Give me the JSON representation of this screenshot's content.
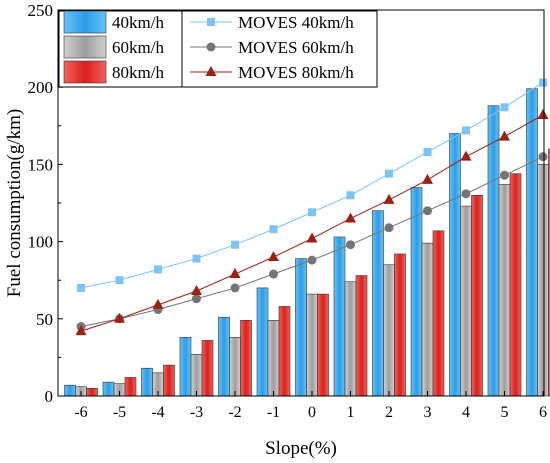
{
  "chart_data": {
    "type": "bar",
    "xlabel": "Slope(%)",
    "ylabel": "Fuel consumption(g/km)",
    "ylim": [
      0,
      250
    ],
    "yticks": [
      0,
      50,
      100,
      150,
      200,
      250
    ],
    "categories": [
      "-6",
      "-5",
      "-4",
      "-3",
      "-2",
      "-1",
      "0",
      "1",
      "2",
      "3",
      "4",
      "5",
      "6"
    ],
    "grid": false,
    "legend_position": "top-left",
    "bar_series": [
      {
        "name": "40km/h",
        "color": "#4FB3F0",
        "values": [
          7,
          9,
          18,
          38,
          51,
          70,
          89,
          103,
          120,
          135,
          170,
          188,
          199
        ]
      },
      {
        "name": "60km/h",
        "color": "#BDBDBD",
        "values": [
          6,
          8,
          15,
          27,
          38,
          49,
          66,
          74,
          85,
          99,
          123,
          137,
          150
        ]
      },
      {
        "name": "80km/h",
        "color": "#E8302C",
        "values": [
          5,
          12,
          20,
          36,
          49,
          58,
          66,
          78,
          92,
          107,
          130,
          144,
          160
        ]
      }
    ],
    "line_series": [
      {
        "name": "MOVES 40km/h",
        "color": "#7CC4F7",
        "marker": "square",
        "values": [
          70,
          75,
          82,
          89,
          98,
          108,
          119,
          130,
          144,
          158,
          172,
          187,
          203
        ]
      },
      {
        "name": "MOVES 60km/h",
        "color": "#757575",
        "marker": "circle",
        "values": [
          45,
          50,
          56,
          63,
          70,
          79,
          88,
          98,
          109,
          120,
          131,
          143,
          155
        ]
      },
      {
        "name": "MOVES 80km/h",
        "color": "#9E1F14",
        "marker": "triangle",
        "values": [
          42,
          50,
          59,
          68,
          79,
          90,
          102,
          115,
          127,
          140,
          155,
          168,
          182
        ]
      }
    ]
  }
}
